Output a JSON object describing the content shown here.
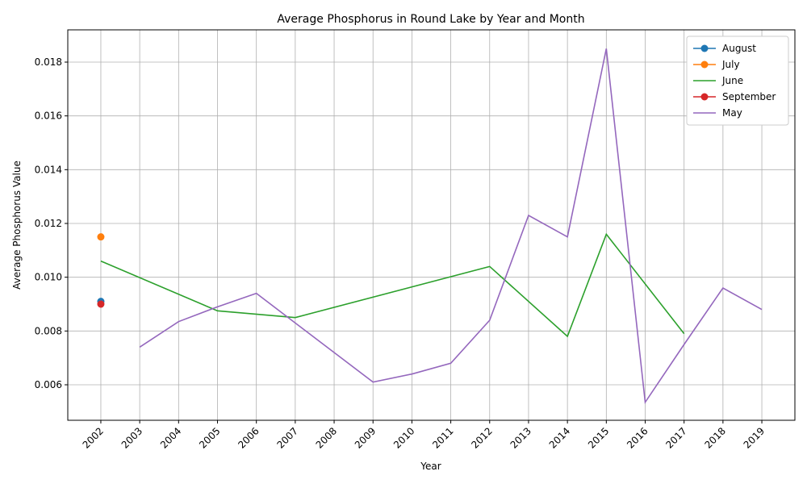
{
  "chart_data": {
    "type": "line",
    "title": "Average Phosphorus in Round Lake by Year and Month",
    "xlabel": "Year",
    "ylabel": "Average Phosphorus Value",
    "xlim": [
      2001.15,
      2019.85
    ],
    "xticks": [
      2002,
      2003,
      2004,
      2005,
      2006,
      2007,
      2008,
      2009,
      2010,
      2011,
      2012,
      2013,
      2014,
      2015,
      2016,
      2017,
      2018,
      2019
    ],
    "ylim": [
      0.00468,
      0.0192
    ],
    "yticks": [
      0.006,
      0.008,
      {
        "value": 0.01,
        "label": "0.010"
      },
      0.012,
      0.014,
      0.016,
      0.018
    ],
    "grid": true,
    "legend": "upper right",
    "series": [
      {
        "name": "August",
        "color": "#1f77b4",
        "marker": true,
        "x": [
          2002
        ],
        "values": [
          0.0091
        ]
      },
      {
        "name": "July",
        "color": "#ff7f0e",
        "marker": true,
        "x": [
          2002
        ],
        "values": [
          0.0115
        ]
      },
      {
        "name": "June",
        "color": "#2ca02c",
        "marker": false,
        "x": [
          2002,
          2005,
          2007,
          2012,
          2014,
          2015,
          2017
        ],
        "values": [
          0.0106,
          0.00875,
          0.0085,
          0.0104,
          0.0078,
          0.0116,
          0.0079
        ]
      },
      {
        "name": "September",
        "color": "#d62728",
        "marker": true,
        "x": [
          2002
        ],
        "values": [
          0.009
        ]
      },
      {
        "name": "May",
        "color": "#9467bd",
        "marker": false,
        "x": [
          2003,
          2004,
          2005,
          2006,
          2007,
          2008,
          2009,
          2010,
          2011,
          2012,
          2013,
          2014,
          2015,
          2016,
          2017,
          2018,
          2019
        ],
        "values": [
          0.0074,
          0.00835,
          0.0089,
          0.0094,
          0.0083,
          0.0072,
          0.0061,
          0.0064,
          0.0068,
          0.0084,
          0.0123,
          0.0115,
          0.0185,
          0.00535,
          0.0075,
          0.0096,
          0.0088
        ]
      }
    ]
  }
}
